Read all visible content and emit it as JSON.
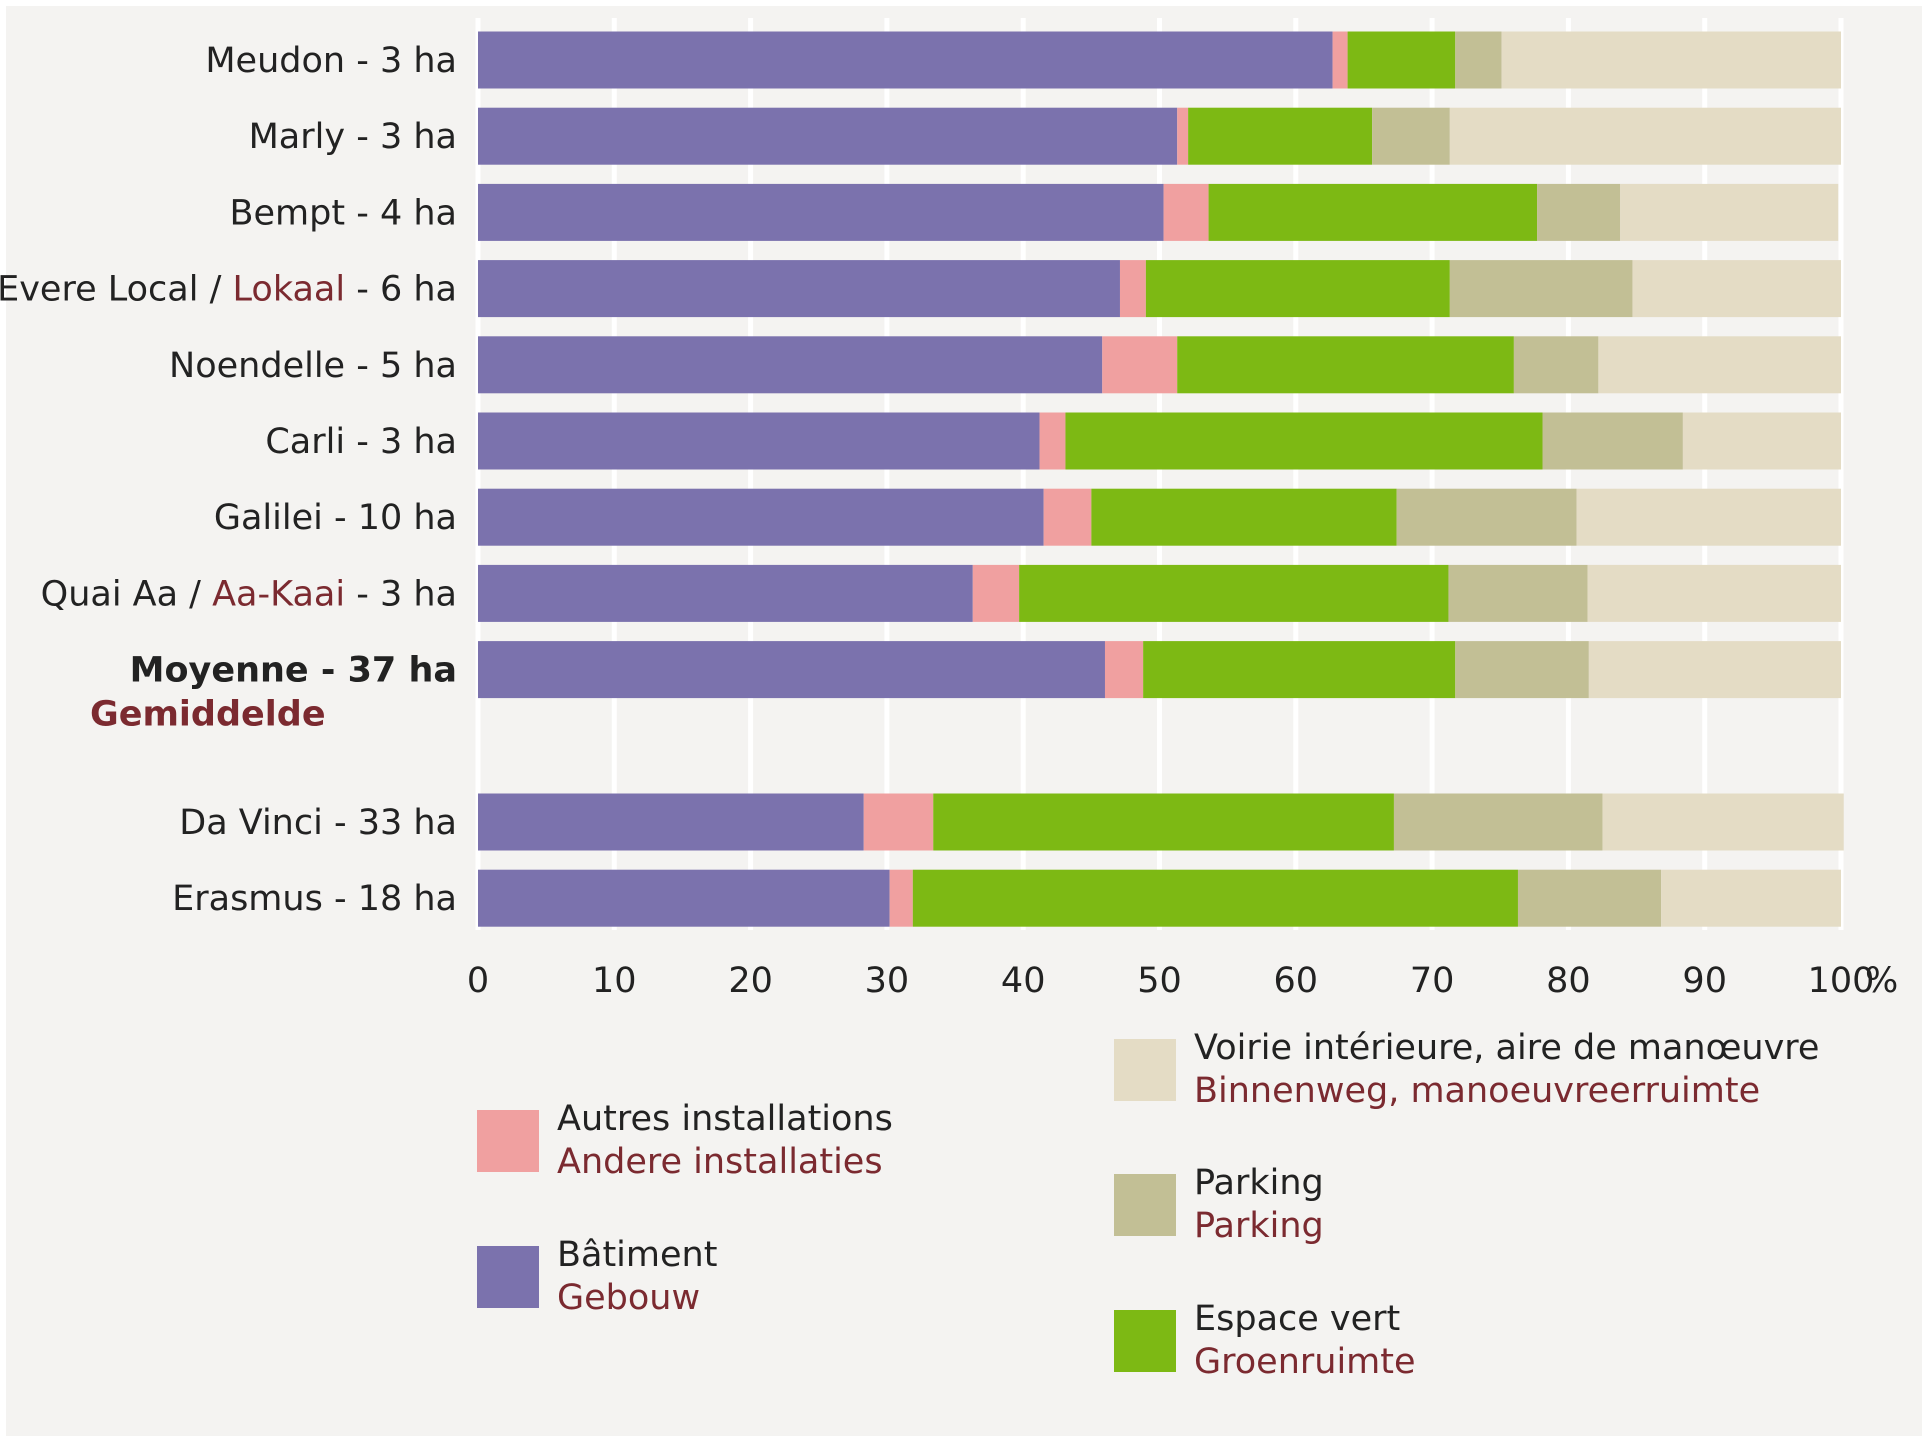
{
  "chart_data": {
    "type": "stacked-barh",
    "categories": [
      [
        "Meudon - 3 ha"
      ],
      [
        "Marly - 3 ha"
      ],
      [
        "Bempt - 4 ha"
      ],
      [
        "Evere Local / ",
        "Lokaal",
        " - 6 ha"
      ],
      [
        "Noendelle - 5 ha"
      ],
      [
        "Carli - 3 ha"
      ],
      [
        "Galilei - 10 ha"
      ],
      [
        "Quai Aa / ",
        "Aa-Kaai",
        " - 3 ha"
      ],
      [
        "Moyenne - 37 ha",
        "Gemiddelde"
      ],
      [
        "Da Vinci - 33 ha"
      ],
      [
        "Erasmus - 18 ha"
      ]
    ],
    "series": [
      {
        "name": "Bâtiment",
        "name_nl": "Gebouw",
        "color": "#7b72ad",
        "values": [
          62.7,
          51.3,
          50.3,
          47.1,
          45.8,
          41.2,
          41.5,
          36.3,
          46.0,
          28.3,
          30.2
        ]
      },
      {
        "name": "Autres installations",
        "name_nl": "Andere installaties",
        "color": "#f0a0a0",
        "values": [
          1.1,
          0.8,
          3.3,
          1.9,
          5.5,
          1.9,
          3.5,
          3.4,
          2.8,
          5.1,
          1.7
        ]
      },
      {
        "name": "Espace vert",
        "name_nl": "Groenruimte",
        "color": "#7db914",
        "values": [
          7.9,
          13.5,
          24.1,
          22.3,
          24.7,
          35.0,
          22.4,
          31.5,
          22.9,
          33.8,
          44.4
        ]
      },
      {
        "name": "Parking",
        "name_nl": "Parking",
        "color": "#c2bf95",
        "values": [
          3.4,
          5.7,
          6.1,
          13.4,
          6.2,
          10.3,
          13.2,
          10.2,
          9.8,
          15.3,
          10.5
        ]
      },
      {
        "name": "Voirie intérieure, aire de manœuvre",
        "name_nl": "Binnenweg, manoeuvreerruimte",
        "color": "#e4dcc5",
        "values": [
          24.9,
          28.7,
          16.0,
          15.3,
          17.8,
          11.6,
          19.4,
          18.6,
          18.5,
          17.7,
          13.2
        ]
      }
    ],
    "xlim": [
      0,
      100
    ],
    "xticks": [
      0,
      10,
      20,
      30,
      40,
      50,
      60,
      70,
      80,
      90,
      100
    ],
    "x_unit": "%",
    "grid": true
  }
}
